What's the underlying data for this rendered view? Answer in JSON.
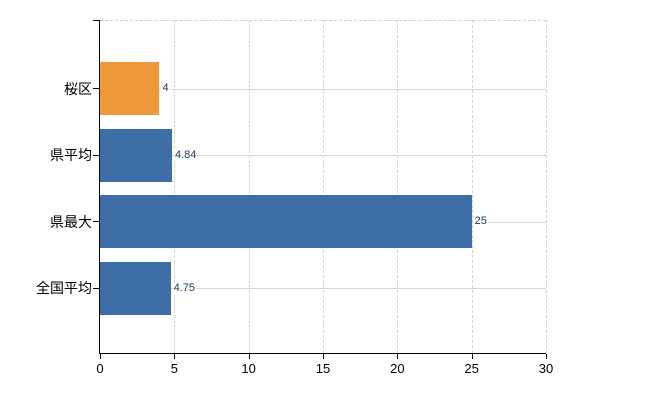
{
  "chart_data": {
    "type": "bar",
    "orientation": "horizontal",
    "title": "",
    "xlabel": "",
    "ylabel": "",
    "categories": [
      "桜区",
      "県平均",
      "県最大",
      "全国平均"
    ],
    "values": [
      4,
      4.84,
      25,
      4.75
    ],
    "value_labels": [
      "4",
      "4.84",
      "25",
      "4.75"
    ],
    "bar_colors": [
      "#f0973b",
      "#3d6ea7",
      "#3d6ea7",
      "#3d6ea7"
    ],
    "xlim": [
      0,
      30
    ],
    "x_ticks": [
      0,
      5,
      10,
      15,
      20,
      25,
      30
    ],
    "x_tick_labels": [
      "0",
      "5",
      "10",
      "15",
      "20",
      "25",
      "30"
    ],
    "grid": true,
    "legend": false
  },
  "colors": {
    "background": "#ffffff",
    "axis": "#000000",
    "grid_vertical": "#d4d4cc",
    "grid_horizontal": "#d6d6ce",
    "category_label": "#000000",
    "value_label": "#1c3a57",
    "accent_blue": "#3d6ea7",
    "accent_orange": "#f0973b"
  }
}
